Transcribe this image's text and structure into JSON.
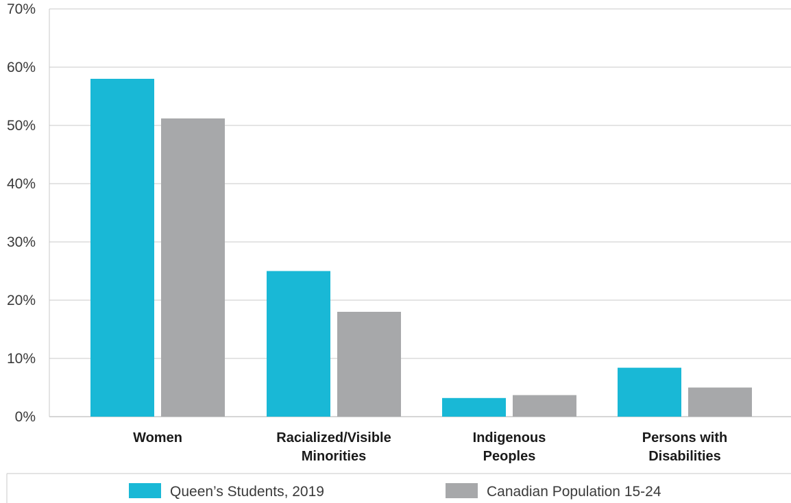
{
  "chart_data": {
    "type": "bar",
    "categories": [
      [
        "Women"
      ],
      [
        "Racialized/Visible",
        "Minorities"
      ],
      [
        "Indigenous",
        "Peoples"
      ],
      [
        "Persons with",
        "Disabilities"
      ]
    ],
    "series": [
      {
        "name": "Queen’s Students, 2019",
        "color": "#19b8d6",
        "values": [
          58.0,
          25.0,
          3.2,
          8.4
        ]
      },
      {
        "name": "Canadian Population 15-24",
        "color": "#a7a8aa",
        "values": [
          51.2,
          18.0,
          3.7,
          5.0
        ]
      }
    ],
    "yticks": [
      "0%",
      "10%",
      "20%",
      "30%",
      "40%",
      "50%",
      "60%",
      "70%"
    ],
    "ylim": [
      0,
      70
    ],
    "grid": true,
    "legend_position": "bottom",
    "title": "",
    "xlabel": "",
    "ylabel": ""
  }
}
